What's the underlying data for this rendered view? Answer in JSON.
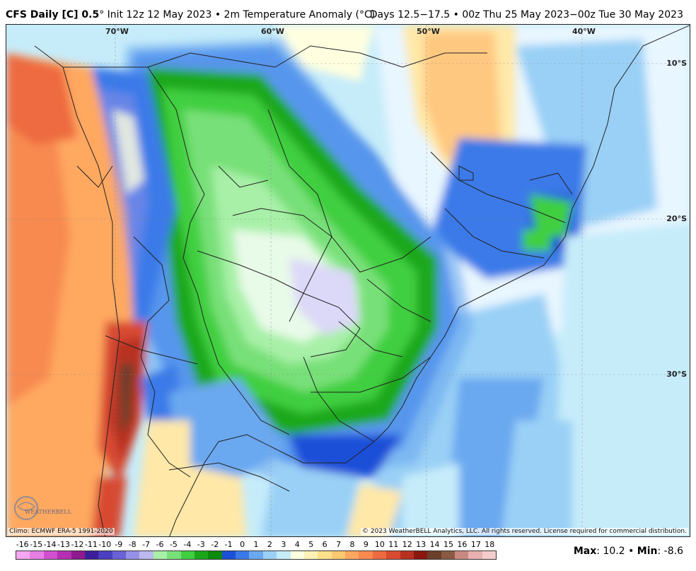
{
  "header": {
    "title_bold": "CFS Daily [C] 0.5",
    "title_rest": "° Init 12z 12 May 2023 • 2m Temperature Anomaly (°C)",
    "valid": "Days 12.5−17.5 • 00z Thu 25 May 2023−00z Tue 30 May 2023"
  },
  "map": {
    "lon_labels": [
      "70°W",
      "60°W",
      "50°W",
      "40°W"
    ],
    "lat_labels": [
      "10°S",
      "20°S",
      "30°S"
    ],
    "climo": "Climo: ECMWF ERA-5 1991-2020",
    "copyright": "© 2023 WeatherBELL Analytics, LLC. All rights reserved. License required for commercial distribution.",
    "logo_text": "WEATHERBELL"
  },
  "colorbar": {
    "ticks": [
      "-16",
      "-15",
      "-14",
      "-13",
      "-12",
      "-11",
      "-10",
      "-9",
      "-8",
      "-7",
      "-6",
      "-5",
      "-4",
      "-3",
      "-2",
      "-1",
      "0",
      "1",
      "2",
      "3",
      "4",
      "5",
      "6",
      "7",
      "8",
      "9",
      "10",
      "11",
      "12",
      "13",
      "14",
      "15",
      "16",
      "17",
      "18"
    ],
    "colors": [
      "#f4a6f0",
      "#e77ee3",
      "#d24fd0",
      "#b52fb3",
      "#8e1a8f",
      "#3b1f9a",
      "#4a3fc0",
      "#6a62d6",
      "#9690e6",
      "#bcb8f0",
      "#a8f0a8",
      "#78e078",
      "#3fcf3f",
      "#1aa81a",
      "#0c8a0c",
      "#1c50d8",
      "#3a7ae8",
      "#6aa8f0",
      "#9ad0f6",
      "#c6ecfa",
      "#ffffe0",
      "#fff2b8",
      "#ffe08a",
      "#ffc870",
      "#ffa860",
      "#f88a50",
      "#ee6a40",
      "#d84a30",
      "#b83020",
      "#8a1810",
      "#6b3f2a",
      "#8a5a44",
      "#c88a80",
      "#e8b0b0",
      "#f4cccc"
    ]
  },
  "stats": {
    "max_label": "Max",
    "max_value": "10.2",
    "sep": "•",
    "min_label": "Min",
    "min_value": "-8.6"
  }
}
